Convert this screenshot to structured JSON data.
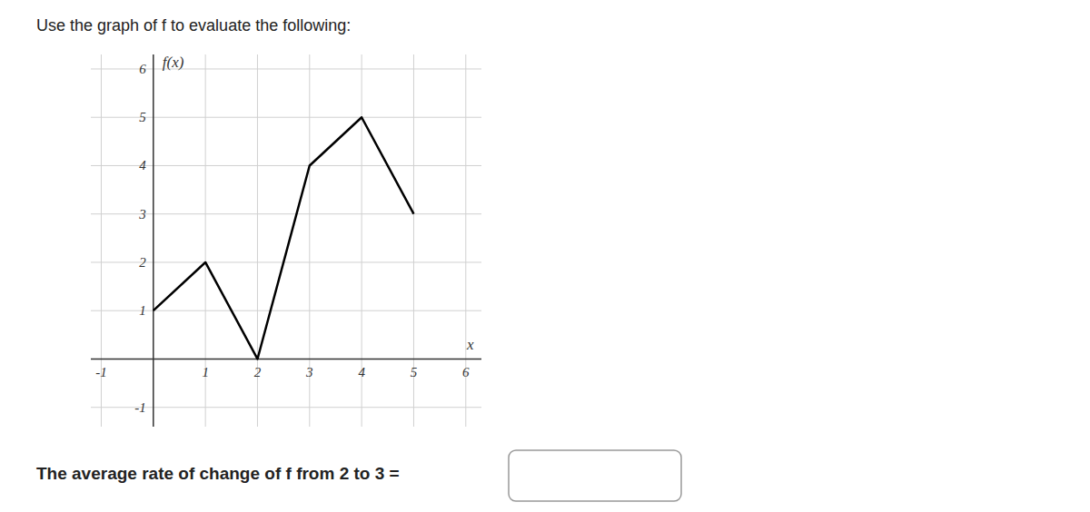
{
  "chart_data": {
    "type": "line",
    "title": "Use the graph of f to evaluate the following:",
    "x_label": "x",
    "y_label": "f(x)",
    "annotations": [
      "The average rate of change of f from 2 to 3 ="
    ],
    "x": [
      0,
      1,
      2,
      3,
      4,
      5
    ],
    "values": [
      1,
      2,
      0,
      4,
      5,
      3
    ],
    "color": "#000000",
    "xlim": [
      -1.2,
      6.3
    ],
    "ylim": [
      -1.4,
      6.3
    ],
    "xticks": [
      -1,
      1,
      2,
      3,
      4,
      5,
      6
    ],
    "yticks": [
      -1,
      1,
      2,
      3,
      4,
      5,
      6
    ],
    "grid": true
  }
}
